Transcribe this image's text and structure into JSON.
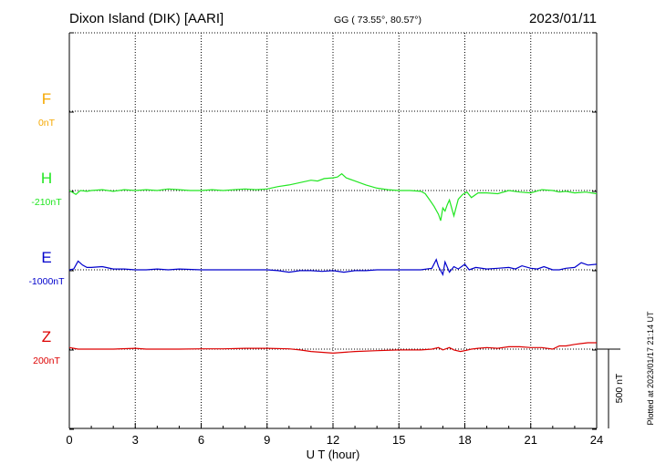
{
  "header": {
    "station": "Dixon Island (DIK)  [AARI]",
    "coords": "GG ( 73.55°,  80.57°)",
    "date": "2023/01/11"
  },
  "side_note": "Plotted at 2023/01/17 21:14 UT",
  "chart_data": {
    "type": "line",
    "xlabel": "U T (hour)",
    "xlim": [
      0,
      24
    ],
    "x_ticks": [
      "0",
      "3",
      "6",
      "9",
      "12",
      "15",
      "18",
      "21",
      "24"
    ],
    "scale_bar_label": "500 nT",
    "scale_bar_nT": 500,
    "panel_spacing_nT": 500,
    "series": [
      {
        "name": "F",
        "baseline": "0nT",
        "color": "#f5a800",
        "x": [],
        "y": []
      },
      {
        "name": "H",
        "baseline": "-210nT",
        "color": "#22e622",
        "x": [
          0,
          0.3,
          0.5,
          0.8,
          1,
          1.5,
          2,
          2.5,
          3,
          3.5,
          4,
          4.5,
          5,
          5.5,
          6,
          6.5,
          7,
          7.5,
          8,
          8.5,
          9,
          9.5,
          10,
          10.5,
          11,
          11.3,
          11.6,
          12,
          12.2,
          12.4,
          12.6,
          13,
          13.5,
          14,
          14.5,
          15,
          15.5,
          16,
          16.2,
          16.4,
          16.6,
          16.8,
          16.9,
          17.0,
          17.1,
          17.2,
          17.3,
          17.5,
          17.7,
          17.9,
          18.1,
          18.3,
          18.6,
          19,
          19.5,
          20,
          20.5,
          21,
          21.5,
          22,
          22.3,
          22.6,
          23,
          23.5,
          24
        ],
        "y": [
          0,
          -25,
          0,
          -5,
          0,
          5,
          -5,
          5,
          0,
          5,
          0,
          10,
          5,
          0,
          0,
          5,
          0,
          5,
          10,
          5,
          10,
          25,
          35,
          50,
          65,
          60,
          75,
          80,
          85,
          105,
          80,
          60,
          35,
          15,
          5,
          0,
          0,
          -5,
          -20,
          -60,
          -100,
          -150,
          -190,
          -110,
          -130,
          -90,
          -60,
          -160,
          -55,
          -25,
          -10,
          -45,
          -15,
          -15,
          -20,
          0,
          -10,
          -15,
          5,
          0,
          -10,
          -5,
          -15,
          -10,
          -20
        ]
      },
      {
        "name": "E",
        "baseline": "-1000nT",
        "color": "#0000cc",
        "x": [
          0,
          0.2,
          0.4,
          0.6,
          0.8,
          1,
          1.5,
          2,
          2.5,
          3,
          3.5,
          4,
          4.5,
          5,
          6,
          7,
          8,
          9,
          9.5,
          10,
          10.5,
          11,
          11.5,
          12,
          12.5,
          13,
          13.5,
          14,
          15,
          16,
          16.5,
          16.7,
          16.8,
          17,
          17.1,
          17.3,
          17.5,
          17.7,
          18,
          18.2,
          18.5,
          19,
          19.5,
          20,
          20.3,
          20.6,
          21,
          21.3,
          21.6,
          22,
          22.3,
          22.6,
          23,
          23.3,
          23.6,
          24
        ],
        "y": [
          0,
          5,
          55,
          30,
          15,
          15,
          20,
          5,
          5,
          0,
          0,
          5,
          0,
          5,
          0,
          0,
          0,
          0,
          -5,
          -15,
          -5,
          -5,
          -10,
          -5,
          -15,
          -5,
          -5,
          0,
          0,
          0,
          10,
          65,
          20,
          -30,
          50,
          -15,
          20,
          5,
          35,
          0,
          15,
          5,
          10,
          15,
          5,
          25,
          10,
          5,
          20,
          0,
          0,
          10,
          15,
          45,
          30,
          35
        ]
      },
      {
        "name": "Z",
        "baseline": "200nT",
        "color": "#dd0000",
        "x": [
          0,
          0.2,
          0.4,
          1,
          2,
          3,
          3.5,
          4,
          5,
          6,
          7,
          8,
          9,
          10,
          10.5,
          11,
          11.5,
          12,
          12.5,
          13,
          14,
          15,
          16,
          16.5,
          16.8,
          17,
          17.3,
          17.5,
          17.8,
          18,
          18.3,
          18.6,
          19,
          19.5,
          20,
          20.5,
          21,
          21.5,
          22,
          22.3,
          22.6,
          23,
          23.3,
          23.6,
          24
        ],
        "y": [
          10,
          5,
          0,
          0,
          0,
          5,
          0,
          0,
          0,
          2,
          2,
          5,
          5,
          2,
          -5,
          -15,
          -20,
          -25,
          -20,
          -15,
          -10,
          -5,
          -5,
          0,
          10,
          -5,
          10,
          -5,
          -15,
          -10,
          0,
          5,
          10,
          5,
          15,
          15,
          10,
          10,
          0,
          20,
          20,
          30,
          35,
          40,
          40
        ]
      }
    ]
  }
}
